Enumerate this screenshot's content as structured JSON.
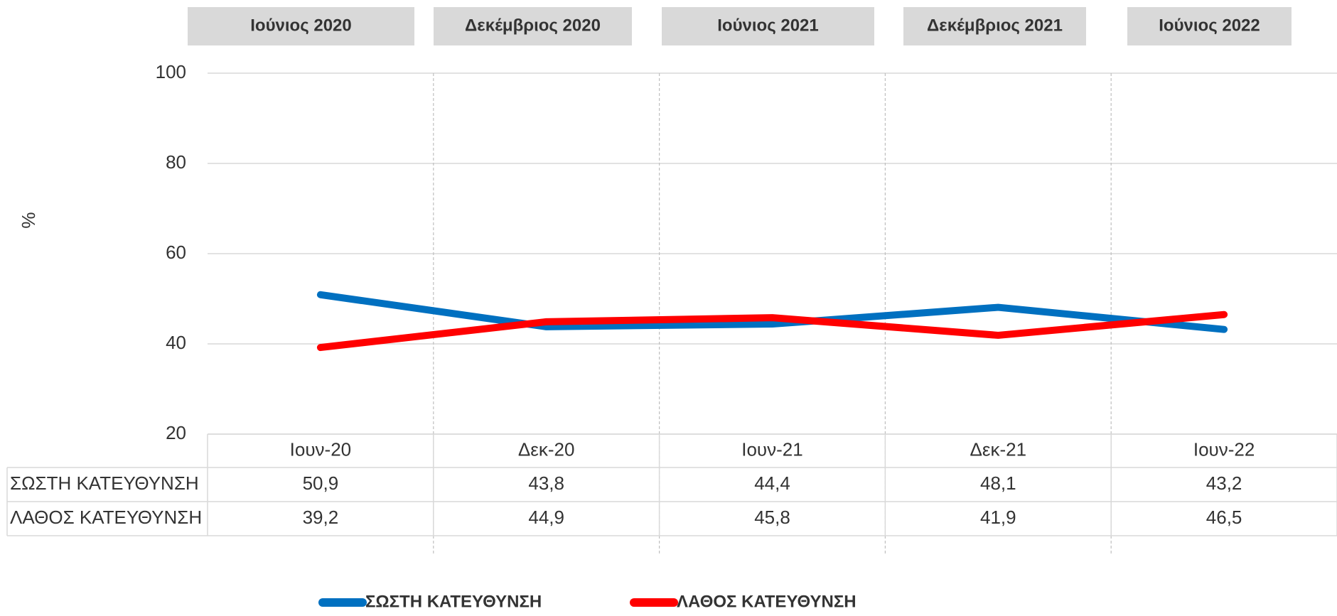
{
  "chart_data": {
    "type": "line",
    "period_headers": [
      "Ιούνιος 2020",
      "Δεκέμβριος 2020",
      "Ιούνιος 2021",
      "Δεκέμβριος 2021",
      "Ιούνιος 2022"
    ],
    "y_label": "%",
    "categories": [
      "Ιουν-20",
      "Δεκ-20",
      "Ιουν-21",
      "Δεκ-21",
      "Ιουν-22"
    ],
    "series": [
      {
        "name": "ΣΩΣΤΗ ΚΑΤΕΥΘΥΝΣΗ",
        "color": "#0070c0",
        "values": [
          50.9,
          43.8,
          44.4,
          48.1,
          43.2
        ],
        "value_labels": [
          "50,9",
          "43,8",
          "44,4",
          "48,1",
          "43,2"
        ]
      },
      {
        "name": "ΛΑΘΟΣ ΚΑΤΕΥΘΥΝΣΗ",
        "color": "#ff0000",
        "values": [
          39.2,
          44.9,
          45.8,
          41.9,
          46.5
        ],
        "value_labels": [
          "39,2",
          "44,9",
          "45,8",
          "41,9",
          "46,5"
        ]
      }
    ],
    "ylim": [
      20,
      100
    ],
    "yticks": [
      20,
      40,
      60,
      80,
      100
    ],
    "grid": true,
    "legend": "bottom"
  }
}
